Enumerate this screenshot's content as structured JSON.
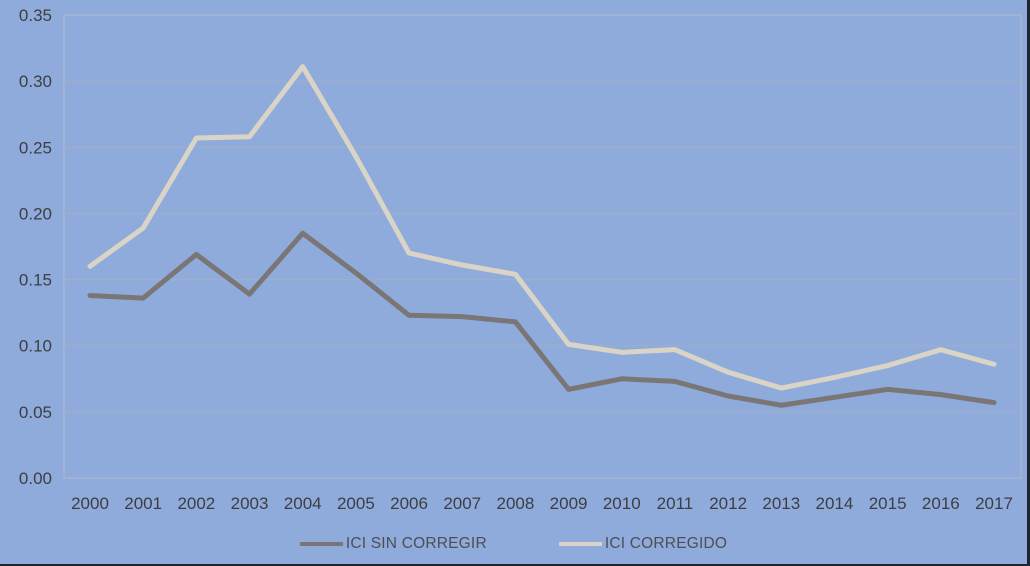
{
  "chart_data": {
    "type": "line",
    "title": "",
    "xlabel": "",
    "ylabel": "",
    "categories": [
      "2000",
      "2001",
      "2002",
      "2003",
      "2004",
      "2005",
      "2006",
      "2007",
      "2008",
      "2009",
      "2010",
      "2011",
      "2012",
      "2013",
      "2014",
      "2015",
      "2016",
      "2017"
    ],
    "series": [
      {
        "name": "ICI SIN CORREGIR",
        "color": "#7b7676",
        "values": [
          0.138,
          0.136,
          0.169,
          0.139,
          0.185,
          0.155,
          0.123,
          0.122,
          0.118,
          0.067,
          0.075,
          0.073,
          0.062,
          0.055,
          0.061,
          0.067,
          0.063,
          0.057
        ]
      },
      {
        "name": "ICI CORREGIDO",
        "color": "#dad4c6",
        "values": [
          0.16,
          0.189,
          0.257,
          0.258,
          0.311,
          0.243,
          0.17,
          0.161,
          0.154,
          0.101,
          0.095,
          0.097,
          0.08,
          0.068,
          0.076,
          0.085,
          0.097,
          0.086
        ]
      }
    ],
    "ylim": [
      0,
      0.35
    ],
    "y_tick_step": 0.05,
    "y_tick_labels": [
      "0.00",
      "0.05",
      "0.10",
      "0.15",
      "0.20",
      "0.25",
      "0.30",
      "0.35"
    ],
    "grid": true,
    "legend_position": "bottom"
  },
  "colors": {
    "background": "#8EABDB",
    "gridline": "#a3aec3",
    "plot_border": "#aeb9cc",
    "tick_label": "#3e3e42",
    "legend_text": "#4e4e52",
    "frame_border": "#1e2430",
    "series_dark": "#7b7676",
    "series_light": "#dad4c6"
  }
}
